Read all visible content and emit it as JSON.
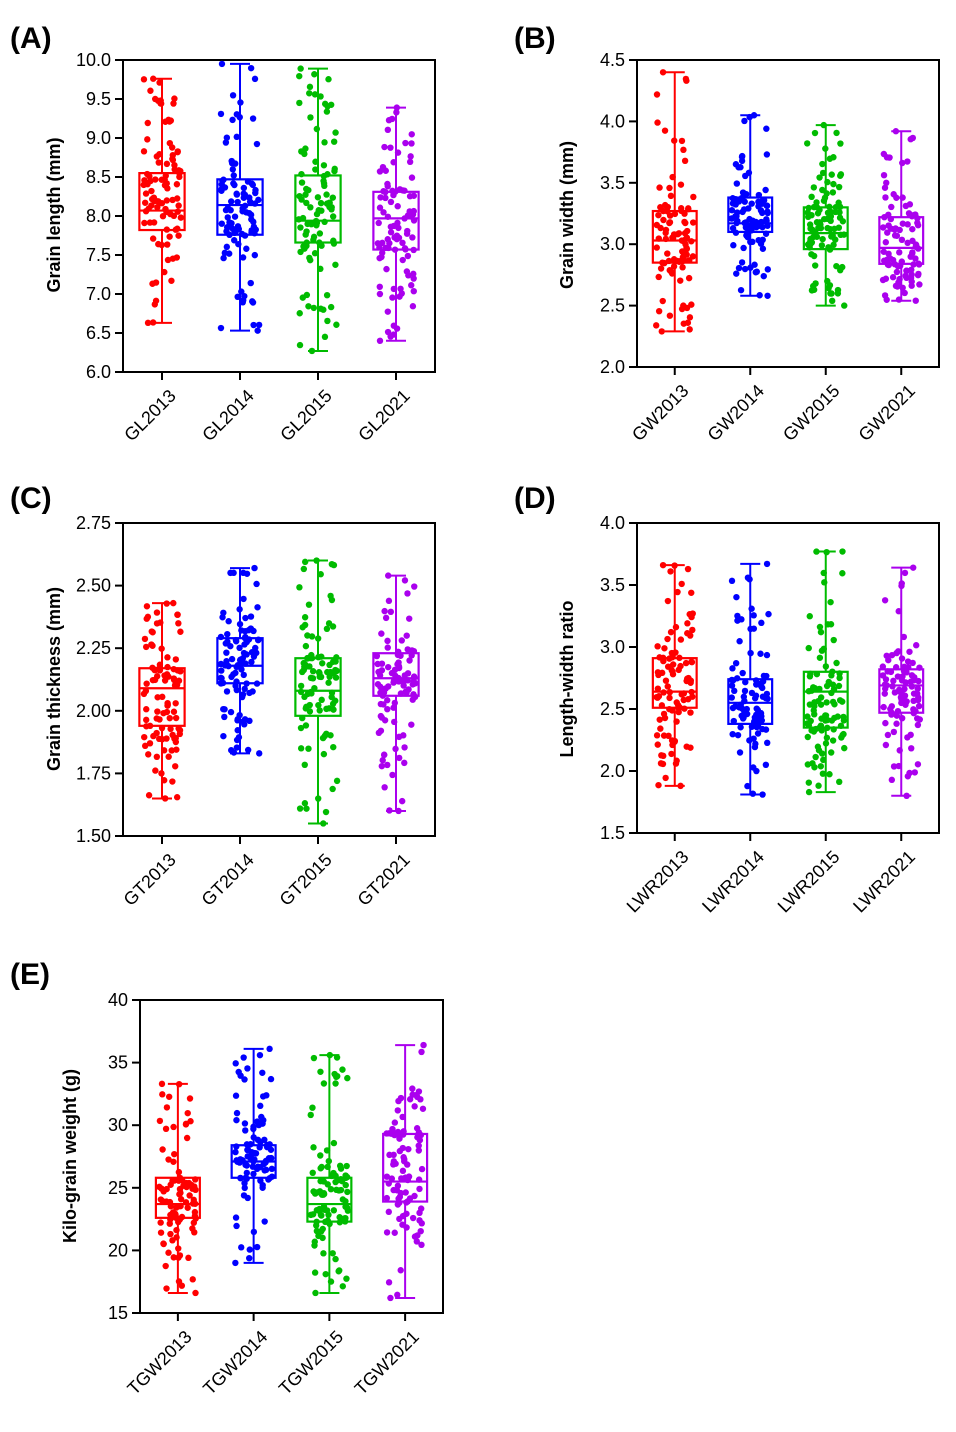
{
  "colors": [
    "#ff0000",
    "#0000ff",
    "#00bb00",
    "#aa00ee"
  ],
  "chart_data": [
    {
      "panel": "(A)",
      "type": "box",
      "ylabel": "Grain length (mm)",
      "ylim": [
        6.0,
        10.0
      ],
      "yticks": [
        "6.0",
        "6.5",
        "7.0",
        "7.5",
        "8.0",
        "8.5",
        "9.0",
        "9.5",
        "10.0"
      ],
      "categories": [
        "GL2013",
        "GL2014",
        "GL2015",
        "GL2021"
      ],
      "boxes": [
        {
          "min": 6.63,
          "q1": 7.82,
          "median": 8.07,
          "q3": 8.55,
          "max": 9.76
        },
        {
          "min": 6.53,
          "q1": 7.76,
          "median": 8.14,
          "q3": 8.47,
          "max": 9.95
        },
        {
          "min": 6.27,
          "q1": 7.66,
          "median": 7.94,
          "q3": 8.52,
          "max": 9.89
        },
        {
          "min": 6.4,
          "q1": 7.57,
          "median": 7.97,
          "q3": 8.31,
          "max": 9.39
        }
      ]
    },
    {
      "panel": "(B)",
      "type": "box",
      "ylabel": "Grain width (mm)",
      "ylim": [
        2.0,
        4.5
      ],
      "yticks": [
        "2.0",
        "2.5",
        "3.0",
        "3.5",
        "4.0",
        "4.5"
      ],
      "categories": [
        "GW2013",
        "GW2014",
        "GW2015",
        "GW2021"
      ],
      "boxes": [
        {
          "min": 2.29,
          "q1": 2.85,
          "median": 3.03,
          "q3": 3.27,
          "max": 4.4
        },
        {
          "min": 2.58,
          "q1": 3.1,
          "median": 3.17,
          "q3": 3.38,
          "max": 4.05
        },
        {
          "min": 2.5,
          "q1": 2.96,
          "median": 3.09,
          "q3": 3.3,
          "max": 3.97
        },
        {
          "min": 2.54,
          "q1": 2.84,
          "median": 2.97,
          "q3": 3.22,
          "max": 3.92
        }
      ]
    },
    {
      "panel": "(C)",
      "type": "box",
      "ylabel": "Grain thickness (mm)",
      "ylim": [
        1.5,
        2.75
      ],
      "yticks": [
        "1.50",
        "1.75",
        "2.00",
        "2.25",
        "2.50",
        "2.75"
      ],
      "categories": [
        "GT2013",
        "GT2014",
        "GT2015",
        "GT2021"
      ],
      "boxes": [
        {
          "min": 1.65,
          "q1": 1.94,
          "median": 2.09,
          "q3": 2.17,
          "max": 2.43
        },
        {
          "min": 1.83,
          "q1": 2.11,
          "median": 2.18,
          "q3": 2.29,
          "max": 2.57
        },
        {
          "min": 1.55,
          "q1": 1.98,
          "median": 2.08,
          "q3": 2.21,
          "max": 2.6
        },
        {
          "min": 1.6,
          "q1": 2.06,
          "median": 2.13,
          "q3": 2.23,
          "max": 2.54
        }
      ]
    },
    {
      "panel": "(D)",
      "type": "box",
      "ylabel": "Length-width ratio",
      "ylim": [
        1.5,
        4.0
      ],
      "yticks": [
        "1.5",
        "2.0",
        "2.5",
        "3.0",
        "3.5",
        "4.0"
      ],
      "categories": [
        "LWR2013",
        "LWR2014",
        "LWR2015",
        "LWR2021"
      ],
      "boxes": [
        {
          "min": 1.88,
          "q1": 2.51,
          "median": 2.64,
          "q3": 2.91,
          "max": 3.66
        },
        {
          "min": 1.81,
          "q1": 2.38,
          "median": 2.55,
          "q3": 2.74,
          "max": 3.67
        },
        {
          "min": 1.83,
          "q1": 2.35,
          "median": 2.64,
          "q3": 2.8,
          "max": 3.77
        },
        {
          "min": 1.8,
          "q1": 2.47,
          "median": 2.69,
          "q3": 2.82,
          "max": 3.64
        }
      ]
    },
    {
      "panel": "(E)",
      "type": "box",
      "ylabel": "Kilo-grain weight (g)",
      "ylim": [
        15,
        40
      ],
      "yticks": [
        "15",
        "20",
        "25",
        "30",
        "35",
        "40"
      ],
      "categories": [
        "TGW2013",
        "TGW2014",
        "TGW2015",
        "TGW2021"
      ],
      "boxes": [
        {
          "min": 16.6,
          "q1": 22.6,
          "median": 23.7,
          "q3": 25.8,
          "max": 33.3
        },
        {
          "min": 19.0,
          "q1": 25.8,
          "median": 27.1,
          "q3": 28.4,
          "max": 36.1
        },
        {
          "min": 16.6,
          "q1": 22.3,
          "median": 23.7,
          "q3": 25.8,
          "max": 35.6
        },
        {
          "min": 16.2,
          "q1": 23.9,
          "median": 25.5,
          "q3": 29.3,
          "max": 36.4
        }
      ]
    }
  ]
}
